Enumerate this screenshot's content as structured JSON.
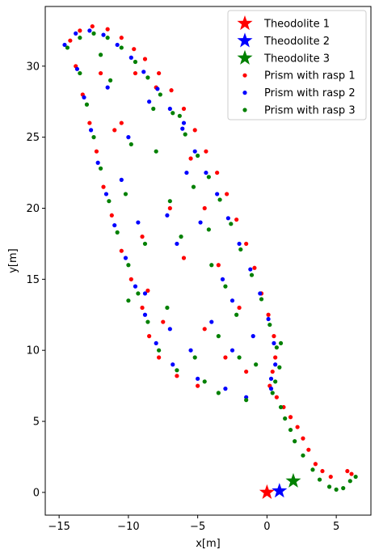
{
  "chart_data": {
    "type": "scatter",
    "title": "",
    "xlabel": "x[m]",
    "ylabel": "y[m]",
    "xlim": [
      -16,
      7.5
    ],
    "ylim": [
      -1.6,
      34.2
    ],
    "xticks": [
      -15,
      -10,
      -5,
      0,
      5
    ],
    "yticks": [
      0,
      5,
      10,
      15,
      20,
      25,
      30
    ],
    "grid": false,
    "legend_position": "top-right",
    "series": [
      {
        "name": "Theodolite 1",
        "marker": "star",
        "color": "#ff0000",
        "points": [
          [
            0,
            0
          ]
        ]
      },
      {
        "name": "Theodolite 2",
        "marker": "star",
        "color": "#0000ff",
        "points": [
          [
            0.9,
            0.1
          ]
        ]
      },
      {
        "name": "Theodolite 3",
        "marker": "star",
        "color": "#008000",
        "points": [
          [
            1.9,
            0.8
          ]
        ]
      },
      {
        "name": "Prism with rasp 1",
        "marker": "dot",
        "color": "#ff0000",
        "points": [
          [
            -14.2,
            31.8
          ],
          [
            -13.5,
            32.5
          ],
          [
            -12.6,
            32.8
          ],
          [
            -11.5,
            32.6
          ],
          [
            -10.5,
            32.0
          ],
          [
            -9.6,
            31.2
          ],
          [
            -8.8,
            30.5
          ],
          [
            -7.8,
            29.5
          ],
          [
            -6.9,
            28.3
          ],
          [
            -6.0,
            27.0
          ],
          [
            -5.2,
            25.5
          ],
          [
            -4.4,
            24.0
          ],
          [
            -3.6,
            22.5
          ],
          [
            -2.9,
            21.0
          ],
          [
            -2.2,
            19.2
          ],
          [
            -1.5,
            17.5
          ],
          [
            -0.9,
            15.8
          ],
          [
            -0.4,
            14.0
          ],
          [
            0.1,
            12.5
          ],
          [
            0.5,
            11.0
          ],
          [
            0.6,
            9.5
          ],
          [
            0.4,
            8.5
          ],
          [
            0.2,
            7.5
          ],
          [
            0.7,
            6.7
          ],
          [
            1.2,
            6.0
          ],
          [
            1.7,
            5.3
          ],
          [
            2.2,
            4.6
          ],
          [
            2.6,
            3.8
          ],
          [
            3.0,
            3.0
          ],
          [
            3.5,
            2.0
          ],
          [
            4.0,
            1.5
          ],
          [
            4.6,
            1.1
          ],
          [
            5.8,
            1.5
          ],
          [
            6.1,
            1.3
          ],
          [
            -5.0,
            7.5
          ],
          [
            -6.5,
            8.2
          ],
          [
            -7.8,
            9.5
          ],
          [
            -8.5,
            11.0
          ],
          [
            -9.0,
            13.0
          ],
          [
            -9.8,
            15.0
          ],
          [
            -10.5,
            17.0
          ],
          [
            -11.2,
            19.5
          ],
          [
            -11.8,
            21.5
          ],
          [
            -12.3,
            24.0
          ],
          [
            -12.8,
            26.0
          ],
          [
            -13.3,
            28.0
          ],
          [
            -13.8,
            30.0
          ],
          [
            -8.6,
            14.2
          ],
          [
            -7.0,
            20.0
          ],
          [
            -4.5,
            20.0
          ],
          [
            -10.5,
            26.0
          ],
          [
            -11.0,
            25.5
          ],
          [
            -4.5,
            11.5
          ],
          [
            -3.0,
            9.5
          ],
          [
            -1.5,
            8.5
          ],
          [
            -8.0,
            28.5
          ],
          [
            -9.5,
            29.5
          ],
          [
            -6.0,
            16.5
          ],
          [
            -2.0,
            13.0
          ],
          [
            -5.5,
            23.5
          ],
          [
            -12.0,
            29.5
          ],
          [
            -9.0,
            18.0
          ],
          [
            -3.5,
            16.0
          ],
          [
            -7.5,
            12.0
          ]
        ]
      },
      {
        "name": "Prism with rasp 2",
        "marker": "dot",
        "color": "#0000ff",
        "points": [
          [
            -14.6,
            31.5
          ],
          [
            -13.8,
            32.3
          ],
          [
            -12.8,
            32.5
          ],
          [
            -11.8,
            32.2
          ],
          [
            -10.8,
            31.5
          ],
          [
            -9.8,
            30.6
          ],
          [
            -8.9,
            29.6
          ],
          [
            -7.9,
            28.4
          ],
          [
            -7.0,
            27.0
          ],
          [
            -6.1,
            25.6
          ],
          [
            -5.2,
            24.0
          ],
          [
            -4.4,
            22.5
          ],
          [
            -3.6,
            21.0
          ],
          [
            -2.8,
            19.3
          ],
          [
            -2.0,
            17.5
          ],
          [
            -1.2,
            15.7
          ],
          [
            -0.5,
            14.0
          ],
          [
            0.1,
            12.2
          ],
          [
            0.5,
            10.5
          ],
          [
            0.6,
            9.0
          ],
          [
            0.3,
            8.0
          ],
          [
            0.3,
            7.3
          ],
          [
            -1.5,
            6.7
          ],
          [
            -3.0,
            7.3
          ],
          [
            -5.0,
            8.0
          ],
          [
            -6.8,
            9.0
          ],
          [
            -8.0,
            10.5
          ],
          [
            -8.8,
            12.5
          ],
          [
            -9.5,
            14.5
          ],
          [
            -10.2,
            16.5
          ],
          [
            -11.0,
            18.8
          ],
          [
            -11.6,
            21.0
          ],
          [
            -12.2,
            23.2
          ],
          [
            -12.7,
            25.5
          ],
          [
            -13.2,
            27.8
          ],
          [
            -13.7,
            29.8
          ],
          [
            -8.8,
            14.0
          ],
          [
            -7.2,
            19.5
          ],
          [
            -4.8,
            19.0
          ],
          [
            -10.0,
            25.0
          ],
          [
            -4.0,
            12.0
          ],
          [
            -2.5,
            10.0
          ],
          [
            -8.5,
            27.5
          ],
          [
            -6.5,
            17.5
          ],
          [
            -2.5,
            13.5
          ],
          [
            -5.8,
            22.5
          ],
          [
            -11.5,
            28.5
          ],
          [
            -9.3,
            19.0
          ],
          [
            -3.2,
            15.0
          ],
          [
            -7.0,
            11.5
          ],
          [
            -10.5,
            22.0
          ],
          [
            -6.0,
            26.0
          ],
          [
            -5.5,
            10.0
          ],
          [
            -1.0,
            11.0
          ]
        ]
      },
      {
        "name": "Prism with rasp 3",
        "marker": "dot",
        "color": "#008000",
        "points": [
          [
            -14.4,
            31.3
          ],
          [
            -13.5,
            32.0
          ],
          [
            -12.5,
            32.3
          ],
          [
            -11.5,
            32.0
          ],
          [
            -10.5,
            31.3
          ],
          [
            -9.5,
            30.3
          ],
          [
            -8.6,
            29.2
          ],
          [
            -7.7,
            28.0
          ],
          [
            -6.8,
            26.7
          ],
          [
            -5.9,
            25.2
          ],
          [
            -5.0,
            23.7
          ],
          [
            -4.2,
            22.2
          ],
          [
            -3.4,
            20.6
          ],
          [
            -2.6,
            18.9
          ],
          [
            -1.9,
            17.1
          ],
          [
            -1.1,
            15.3
          ],
          [
            -0.4,
            13.6
          ],
          [
            0.2,
            11.8
          ],
          [
            0.7,
            10.2
          ],
          [
            0.9,
            8.8
          ],
          [
            0.6,
            7.8
          ],
          [
            0.4,
            7.0
          ],
          [
            -1.5,
            6.5
          ],
          [
            -3.5,
            7.0
          ],
          [
            -4.5,
            7.8
          ],
          [
            -6.5,
            8.6
          ],
          [
            -7.8,
            10.0
          ],
          [
            -8.6,
            12.0
          ],
          [
            -9.3,
            14.0
          ],
          [
            -10.0,
            16.0
          ],
          [
            -10.8,
            18.3
          ],
          [
            -11.4,
            20.5
          ],
          [
            -12.0,
            22.8
          ],
          [
            -12.5,
            25.0
          ],
          [
            -13.0,
            27.3
          ],
          [
            -13.5,
            29.5
          ],
          [
            -10.0,
            13.5
          ],
          [
            1.0,
            6.0
          ],
          [
            1.3,
            5.2
          ],
          [
            1.7,
            4.4
          ],
          [
            2.0,
            3.6
          ],
          [
            2.6,
            2.6
          ],
          [
            3.3,
            1.6
          ],
          [
            3.8,
            0.9
          ],
          [
            4.5,
            0.4
          ],
          [
            5.0,
            0.2
          ],
          [
            5.5,
            0.3
          ],
          [
            6.0,
            0.8
          ],
          [
            6.4,
            1.1
          ],
          [
            1.0,
            10.5
          ],
          [
            -7.0,
            20.5
          ],
          [
            -4.2,
            18.5
          ],
          [
            -9.8,
            24.5
          ],
          [
            -3.5,
            11.0
          ],
          [
            -2.0,
            9.5
          ],
          [
            -8.2,
            27.0
          ],
          [
            -6.2,
            18.0
          ],
          [
            -2.2,
            12.5
          ],
          [
            -5.3,
            21.5
          ],
          [
            -11.3,
            29.0
          ],
          [
            -8.8,
            17.5
          ],
          [
            -3.0,
            14.5
          ],
          [
            -7.2,
            13.0
          ],
          [
            -10.2,
            21.0
          ],
          [
            -6.3,
            26.5
          ],
          [
            -5.2,
            9.5
          ],
          [
            -0.8,
            9.0
          ],
          [
            -12.0,
            30.8
          ],
          [
            -8.0,
            24.0
          ],
          [
            -4.0,
            16.0
          ]
        ]
      }
    ]
  }
}
